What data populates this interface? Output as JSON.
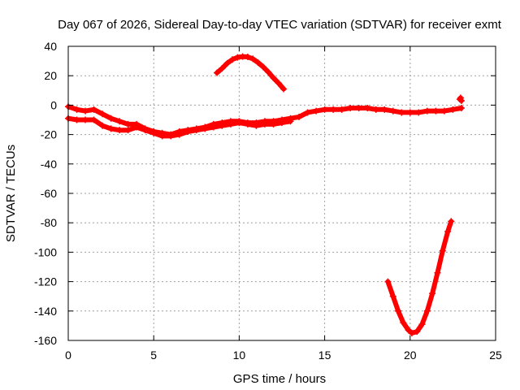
{
  "chart_data": {
    "type": "scatter",
    "title": "Day 067 of 2026, Sidereal Day-to-day VTEC variation (SDTVAR) for receiver exmt",
    "xlabel": "GPS time / hours",
    "ylabel": "SDTVAR / TECUs",
    "xlim": [
      0,
      25
    ],
    "ylim": [
      -160,
      40
    ],
    "xticks": [
      "0",
      "5",
      "10",
      "15",
      "20",
      "25"
    ],
    "yticks": [
      "40",
      "20",
      "0",
      "-20",
      "-40",
      "-60",
      "-80",
      "-100",
      "-120",
      "-140",
      "-160"
    ],
    "grid": true,
    "legend": "none",
    "marker": "plus",
    "color": "#ff0000",
    "series": [
      {
        "name": "track-main-upper",
        "x": [
          0,
          0.5,
          1.0,
          1.5,
          2.0,
          2.5,
          3.0,
          3.5,
          4.0,
          4.5,
          5.0,
          5.5,
          6.0,
          6.5,
          7.0,
          7.5,
          8.0,
          8.5,
          9.0,
          9.5,
          10.0,
          10.5,
          11.0,
          11.5,
          12.0,
          12.5,
          13.0,
          13.5,
          14.0,
          14.5,
          15.0,
          15.5,
          16.0,
          16.5,
          17.0,
          17.5,
          18.0,
          18.5,
          19.0,
          19.5,
          20.0,
          20.5,
          21.0,
          21.5,
          22.0,
          22.5,
          23.0
        ],
        "y": [
          -1,
          -3,
          -4,
          -3,
          -6,
          -9,
          -11,
          -13,
          -13,
          -16,
          -18,
          -19,
          -20,
          -18,
          -17,
          -16,
          -15,
          -13,
          -12,
          -11,
          -11,
          -12,
          -12,
          -11,
          -11,
          -10,
          -9,
          -8,
          -5,
          -4,
          -3,
          -3,
          -3,
          -2,
          -2,
          -2,
          -3,
          -3,
          -4,
          -5,
          -5,
          -5,
          -4,
          -4,
          -4,
          -3,
          -2
        ]
      },
      {
        "name": "track-main-lower",
        "x": [
          0,
          0.5,
          1.0,
          1.5,
          2.0,
          2.5,
          3.0,
          3.5,
          4.0,
          4.5,
          5.0,
          5.5,
          6.0,
          6.5,
          7.0,
          7.5,
          8.0,
          8.5,
          9.0,
          9.5,
          10.0,
          10.5,
          11.0,
          11.5,
          12.0,
          12.5,
          13.0
        ],
        "y": [
          -9,
          -10,
          -10,
          -10,
          -14,
          -16,
          -17,
          -17,
          -15,
          -17,
          -19,
          -21,
          -21,
          -20,
          -18,
          -17,
          -16,
          -15,
          -14,
          -13,
          -12,
          -13,
          -14,
          -13,
          -13,
          -12,
          -11
        ]
      },
      {
        "name": "track-arc",
        "x": [
          8.7,
          9.0,
          9.3,
          9.6,
          9.9,
          10.2,
          10.5,
          10.8,
          11.1,
          11.4,
          11.7,
          12.0,
          12.3,
          12.6
        ],
        "y": [
          22,
          25,
          28.5,
          31,
          32.5,
          33,
          32.8,
          31.5,
          29,
          26,
          22.5,
          18.5,
          15,
          11
        ]
      },
      {
        "name": "track-dip",
        "x": [
          18.7,
          19.0,
          19.3,
          19.6,
          19.9,
          20.1,
          20.4,
          20.7,
          21.0,
          21.3,
          21.6,
          21.9,
          22.2,
          22.4
        ],
        "y": [
          -120,
          -130,
          -140,
          -148,
          -153,
          -155,
          -154,
          -149,
          -140,
          -128,
          -114,
          -99,
          -86,
          -79
        ]
      },
      {
        "name": "track-end-spike",
        "x": [
          22.9,
          22.95,
          23.0
        ],
        "y": [
          4,
          5,
          3
        ]
      }
    ]
  }
}
